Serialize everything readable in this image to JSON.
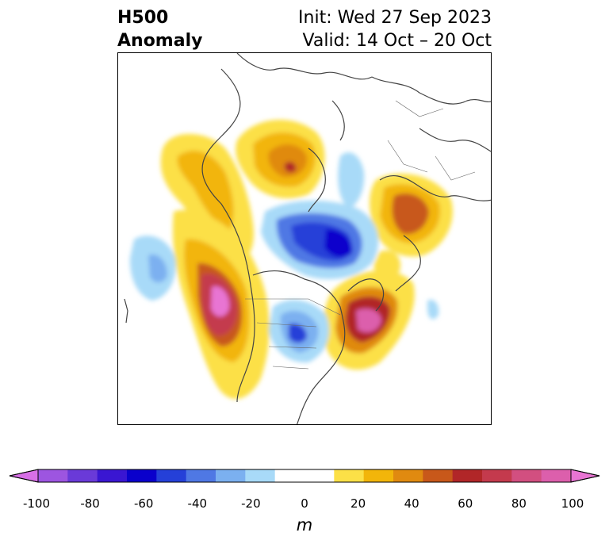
{
  "header": {
    "title_line1": "H500",
    "title_line2": "Anomaly",
    "init_text": "Init: Wed 27 Sep 2023",
    "valid_text": "Valid: 14 Oct – 20 Oct"
  },
  "colorbar": {
    "unit": "m",
    "ticks": [
      "-100",
      "-80",
      "-60",
      "-40",
      "-20",
      "0",
      "20",
      "40",
      "60",
      "80",
      "100"
    ],
    "colors": [
      "#d76fe6",
      "#9d55e0",
      "#6a3ad8",
      "#3a16d2",
      "#0a00cc",
      "#2540d8",
      "#4f78e4",
      "#7bb0f0",
      "#a8daf8",
      "#ffffff",
      "#ffffff",
      "#fce047",
      "#f2b50a",
      "#e08a10",
      "#c8581a",
      "#b12628",
      "#c43a4d",
      "#d24f80",
      "#dc5fac",
      "#e874d3"
    ],
    "under_color": "#d76fe6",
    "over_color": "#e874d3"
  }
}
